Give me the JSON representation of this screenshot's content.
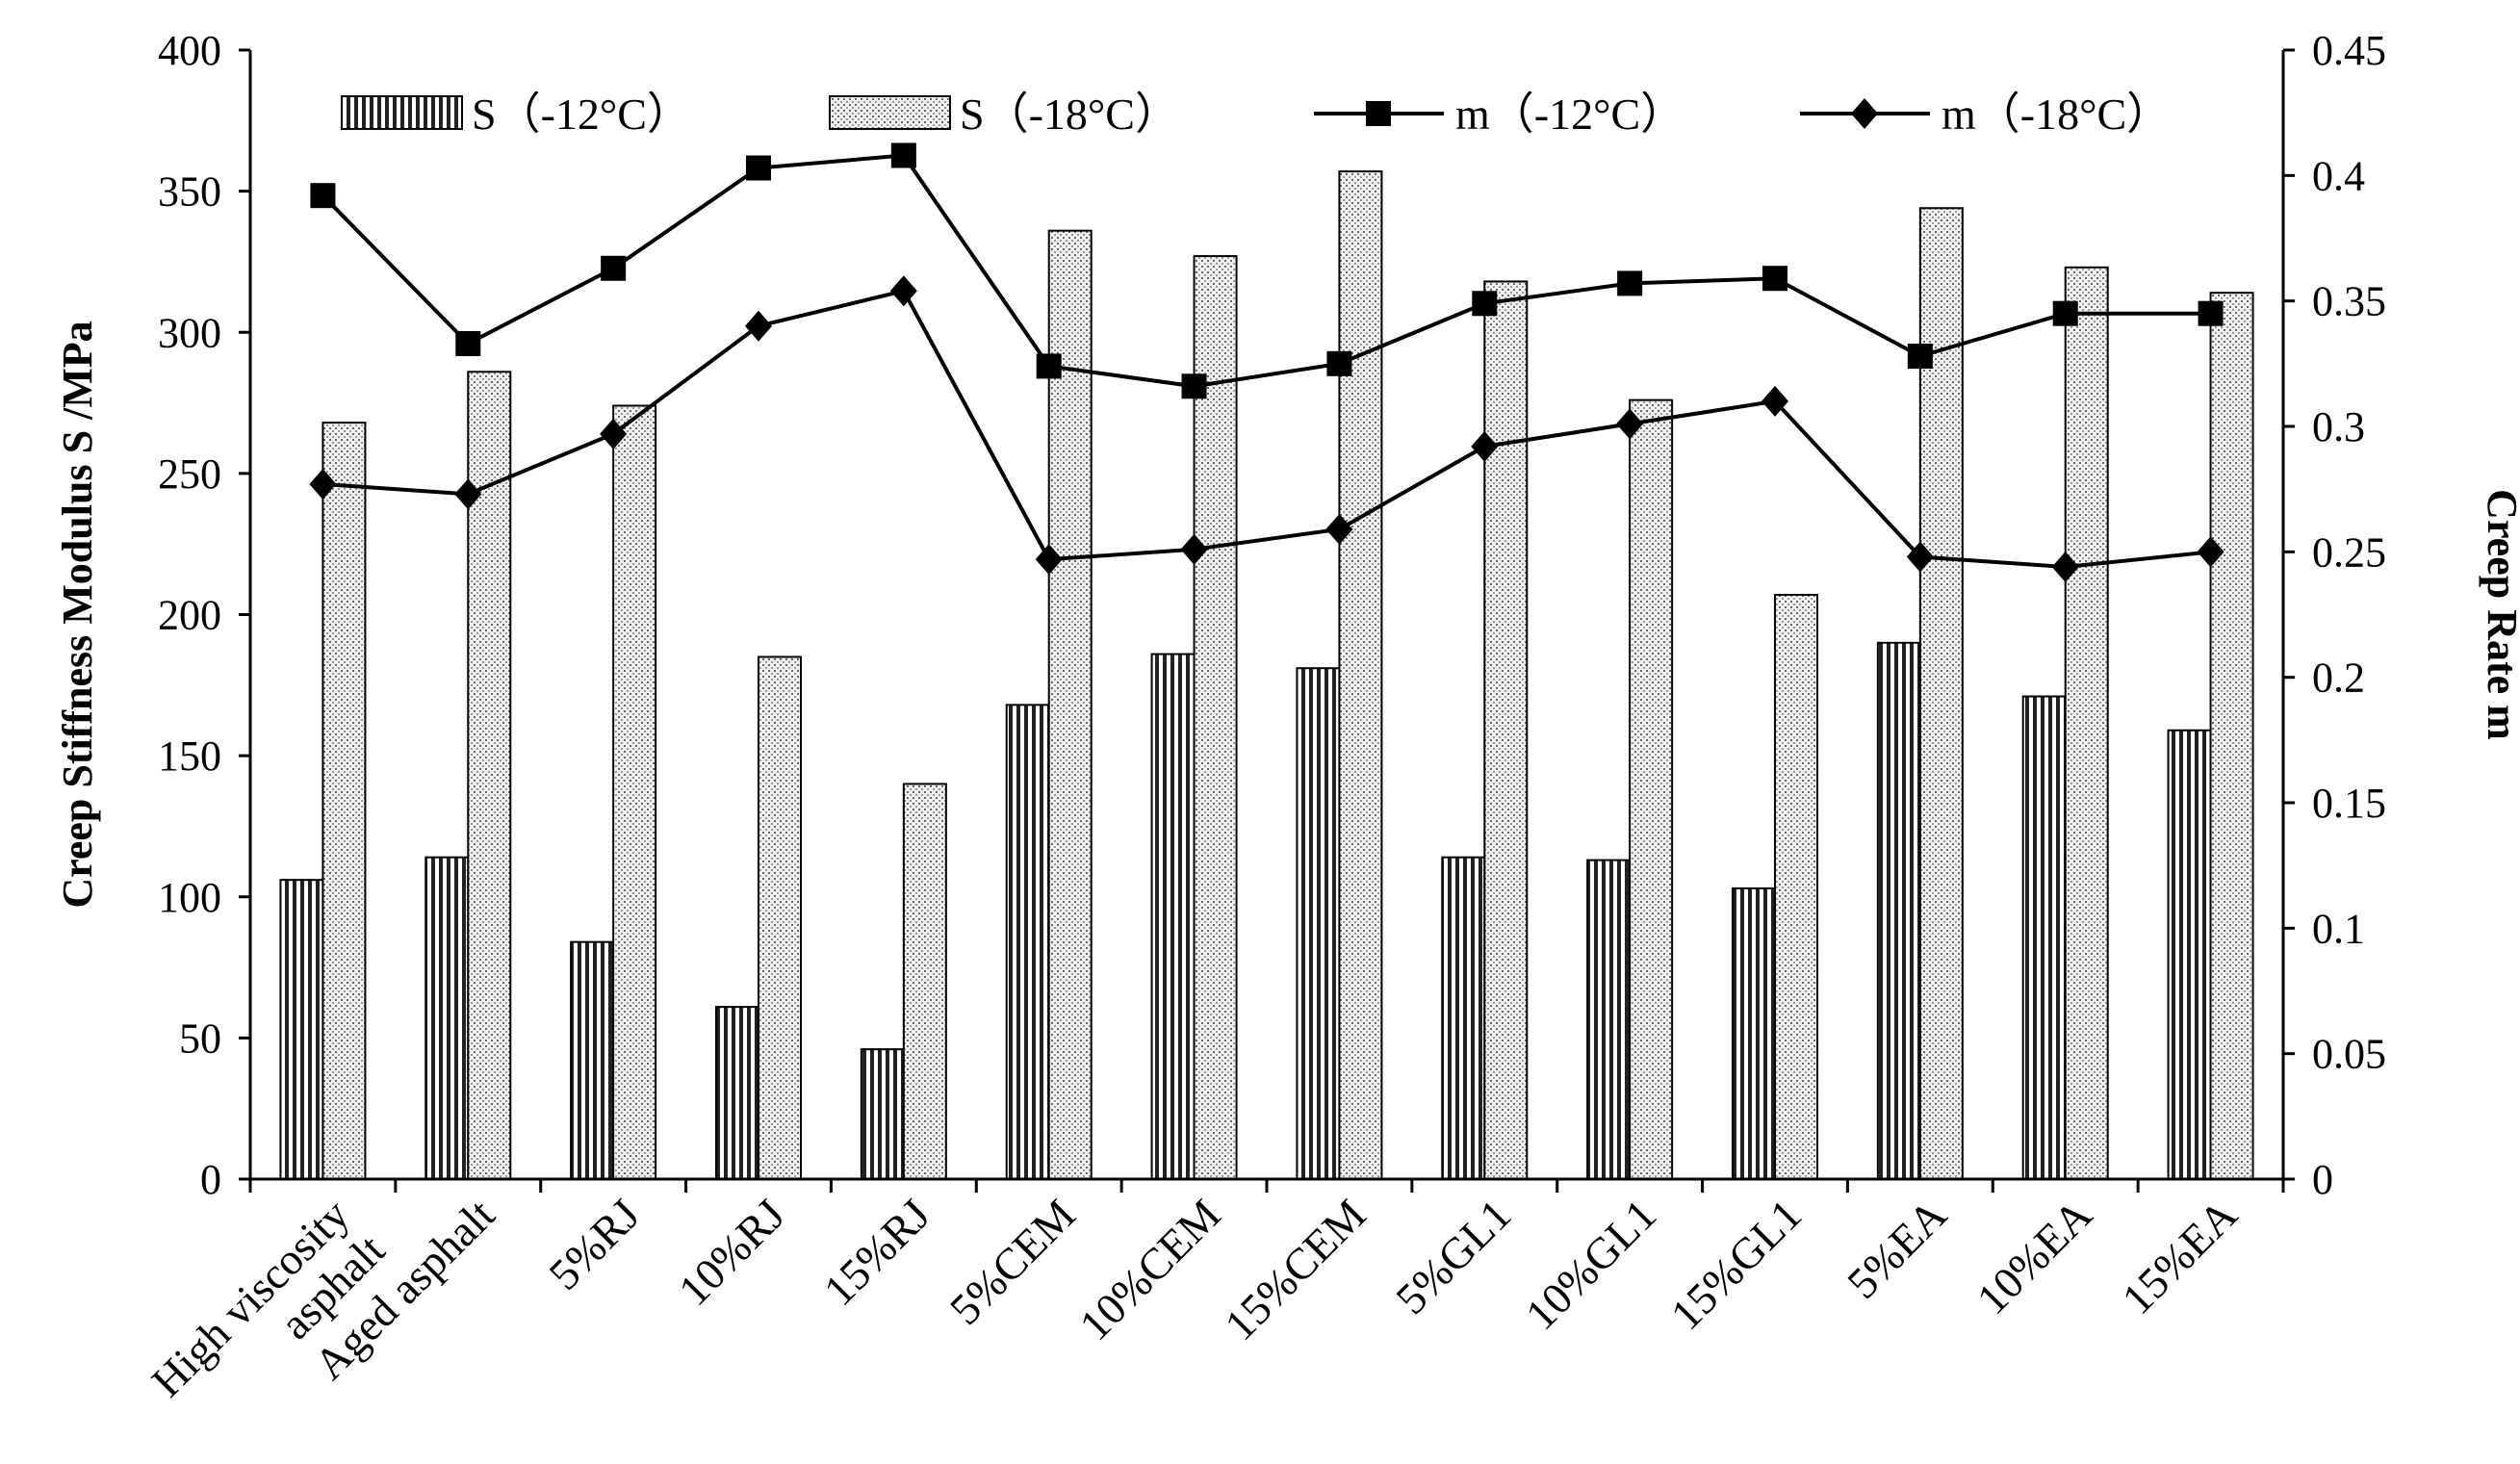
{
  "chart_data": {
    "type": "bar+line",
    "categories": [
      [
        "High viscosity",
        "asphalt"
      ],
      [
        "Aged asphalt"
      ],
      [
        "5%RJ"
      ],
      [
        "10%RJ"
      ],
      [
        "15%RJ"
      ],
      [
        "5%CEM"
      ],
      [
        "10%CEM"
      ],
      [
        "15%CEM"
      ],
      [
        "5%GL1"
      ],
      [
        "10%GL1"
      ],
      [
        "15%GL1"
      ],
      [
        "5%EA"
      ],
      [
        "10%EA"
      ],
      [
        "15%EA"
      ]
    ],
    "bar_series": [
      {
        "name": "S（-12°C）",
        "pattern": "vertical-stripes",
        "values": [
          106,
          114,
          84,
          61,
          46,
          168,
          186,
          181,
          114,
          113,
          103,
          190,
          171,
          159
        ]
      },
      {
        "name": "S（-18°C）",
        "pattern": "dots",
        "values": [
          268,
          286,
          274,
          185,
          140,
          336,
          327,
          357,
          318,
          276,
          207,
          344,
          323,
          314
        ]
      }
    ],
    "line_series": [
      {
        "name": "m（-12°C）",
        "marker": "square",
        "values": [
          0.392,
          0.333,
          0.363,
          0.403,
          0.408,
          0.324,
          0.316,
          0.325,
          0.349,
          0.357,
          0.359,
          0.328,
          0.345,
          0.345
        ]
      },
      {
        "name": "m（-18°C）",
        "marker": "diamond",
        "values": [
          0.277,
          0.273,
          0.297,
          0.34,
          0.354,
          0.247,
          0.251,
          0.259,
          0.292,
          0.301,
          0.31,
          0.248,
          0.244,
          0.25
        ]
      }
    ],
    "ylabel": "Creep Stiffness Modulus S /MPa",
    "y2label": "Creep Rate m",
    "ylim": [
      0,
      400
    ],
    "y2lim": [
      0,
      0.45
    ],
    "y_ticks": [
      "0",
      "50",
      "100",
      "150",
      "200",
      "250",
      "300",
      "350",
      "400"
    ],
    "y2_ticks": [
      "0",
      "0.05",
      "0.1",
      "0.15",
      "0.2",
      "0.25",
      "0.3",
      "0.35",
      "0.4",
      "0.45"
    ],
    "grid": false,
    "legend_position": "top"
  }
}
